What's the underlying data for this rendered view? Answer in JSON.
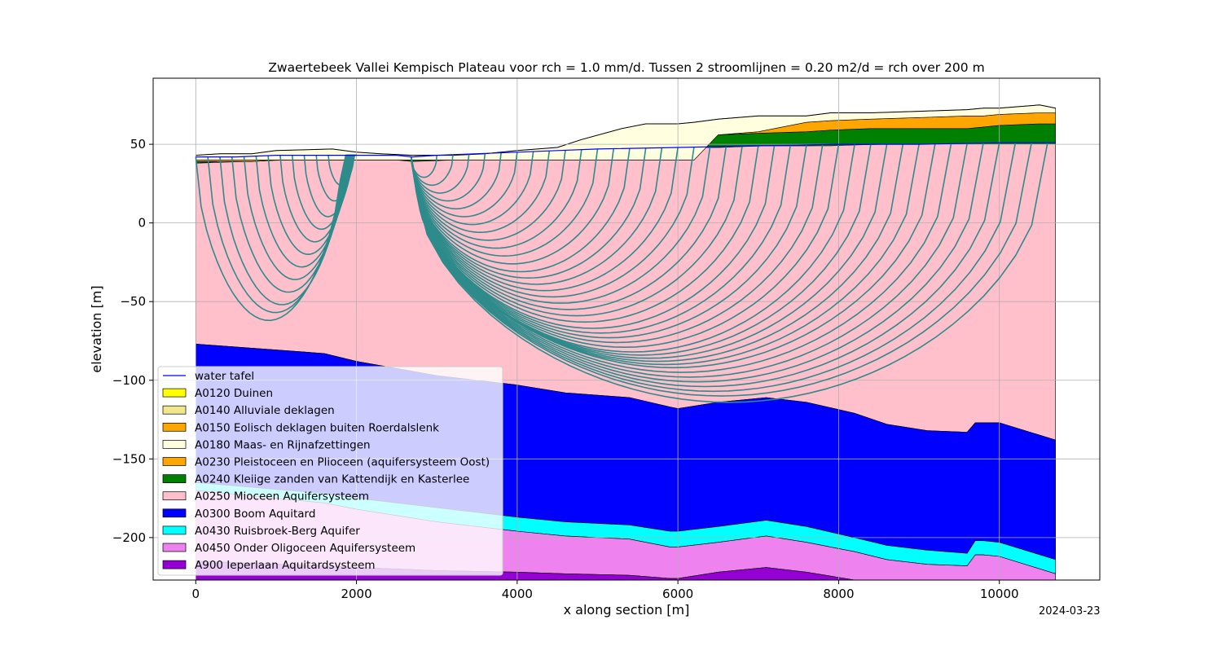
{
  "chart_data": {
    "type": "area",
    "title": "Zwaertebeek Vallei Kempisch Plateau voor rch = 1.0 mm/d. Tussen 2 stroomlijnen = 0.20 m2/d = rch over 200 m",
    "xlabel": "x along section [m]",
    "ylabel": "elevation [m]",
    "xlim": [
      -530,
      11250
    ],
    "ylim": [
      -227,
      92
    ],
    "xticks": [
      0,
      2000,
      4000,
      6000,
      8000,
      10000
    ],
    "xtick_labels": [
      "0",
      "2000",
      "4000",
      "6000",
      "8000",
      "10000"
    ],
    "yticks": [
      50,
      0,
      -50,
      -100,
      -150,
      -200
    ],
    "ytick_labels": [
      "50",
      "0",
      "−50",
      "−100",
      "−150",
      "−200"
    ],
    "grid": true,
    "legend_position": "lower-left",
    "legend": [
      {
        "label": "water tafel",
        "kind": "line",
        "color": "#0000ff"
      },
      {
        "label": "A0120 Duinen",
        "kind": "patch",
        "color": "#ffff00"
      },
      {
        "label": "A0140 Alluviale deklagen",
        "kind": "patch",
        "color": "#f0e68c"
      },
      {
        "label": "A0150 Eolisch deklagen buiten Roerdalslenk",
        "kind": "patch",
        "color": "#ffa500"
      },
      {
        "label": "A0180 Maas- en Rijnafzettingen",
        "kind": "patch",
        "color": "#ffffe0"
      },
      {
        "label": "A0230 Pleistoceen en Plioceen (aquifersysteem Oost)",
        "kind": "patch",
        "color": "#ffa500"
      },
      {
        "label": "A0240 Kleiige zanden van Kattendijk en Kasterlee",
        "kind": "patch",
        "color": "#008000"
      },
      {
        "label": "A0250 Mioceen Aquifersysteem",
        "kind": "patch",
        "color": "#ffc0cb"
      },
      {
        "label": "A0300 Boom Aquitard",
        "kind": "patch",
        "color": "#0000ff"
      },
      {
        "label": "A0430 Ruisbroek-Berg Aquifer",
        "kind": "patch",
        "color": "#00ffff"
      },
      {
        "label": "A0450 Onder Oligoceen Aquifersysteem",
        "kind": "patch",
        "color": "#ee82ee"
      },
      {
        "label": "A900 Ieperlaan Aquitardsysteem",
        "kind": "patch",
        "color": "#9400d3"
      }
    ],
    "layer_bottoms": {
      "x": [
        0,
        1600,
        2000,
        3000,
        4000,
        4600,
        5400,
        5900,
        6000,
        6500,
        7100,
        7600,
        8200,
        8600,
        9100,
        9600,
        9700,
        9800,
        10000,
        10700
      ],
      "A0250": [
        -77,
        -83,
        -88,
        -97,
        -103,
        -108,
        -111,
        -117,
        -118,
        -114,
        -111,
        -114,
        -121,
        -128,
        -132,
        -133,
        -127,
        -127,
        -127,
        -138
      ],
      "A0300": [
        -165,
        -172,
        -175,
        -181,
        -187,
        -190,
        -192,
        -196,
        -196,
        -193,
        -189,
        -193,
        -200,
        -205,
        -208,
        -210,
        -202,
        -202,
        -203,
        -214
      ],
      "A0430": [
        -170,
        -178,
        -182,
        -190,
        -196,
        -199,
        -201,
        -206,
        -206,
        -203,
        -199,
        -203,
        -209,
        -214,
        -217,
        -218,
        -211,
        -211,
        -212,
        -223
      ],
      "A0450": [
        -215,
        -218,
        -219,
        -221,
        -222,
        -223,
        -224,
        -226,
        -226,
        -222,
        -219,
        -222,
        -227,
        -227,
        -227,
        -227,
        -227,
        -227,
        -227,
        -227
      ]
    },
    "top_layers": {
      "x": [
        0,
        300,
        700,
        1000,
        1700,
        2000,
        2300,
        2700,
        3200,
        3600,
        4000,
        4500,
        4800,
        5300,
        5600,
        6000,
        6200,
        6500,
        7000,
        7600,
        7900,
        8400,
        9000,
        9600,
        9800,
        10000,
        10500,
        10700
      ],
      "ground_surface": [
        43,
        44,
        44,
        46,
        47,
        45,
        44,
        43,
        43,
        44,
        46,
        48,
        53,
        60,
        63,
        63,
        64,
        66,
        68,
        68,
        70,
        70,
        71,
        72,
        73,
        73,
        75,
        73
      ],
      "A0180_bottom": [
        40,
        40,
        40,
        40,
        40,
        40,
        40,
        40,
        40,
        40,
        40,
        40,
        40,
        40,
        40,
        40,
        40,
        56,
        58,
        64,
        65,
        66,
        67,
        68,
        68,
        69,
        70,
        70
      ],
      "A0230_bottom": [
        39,
        39,
        39,
        40,
        40,
        40,
        40,
        40,
        40,
        41,
        43,
        46,
        51,
        57,
        59,
        59,
        58,
        56,
        57,
        58,
        59,
        60,
        60,
        60,
        61,
        62,
        63,
        63
      ],
      "A0240_bottom": [
        38,
        39,
        39,
        40,
        41,
        41,
        41,
        39,
        40,
        42,
        44,
        46,
        47,
        48,
        48,
        48,
        48,
        48,
        49,
        49,
        49,
        50,
        50,
        50,
        50,
        50,
        50,
        50
      ]
    },
    "water_table": {
      "x": [
        0,
        500,
        1000,
        1500,
        2000,
        2500,
        2700,
        3000,
        3500,
        4000,
        4500,
        5000,
        6000,
        7000,
        8000,
        9000,
        10000,
        10700
      ],
      "y": [
        42,
        42,
        43,
        43,
        43,
        43,
        42,
        43,
        44,
        45,
        46,
        47,
        48,
        49,
        50,
        50,
        51,
        51
      ]
    },
    "streamlines": {
      "left_valley_x_starts": [
        0,
        150,
        300,
        450,
        600,
        750,
        900,
        1050,
        1200,
        1350,
        1500,
        1650
      ],
      "left_valley_depths": [
        -62,
        -57,
        -52,
        -44,
        -36,
        -28,
        -20,
        -12,
        -4,
        4,
        14,
        24
      ],
      "right_valley_x_starts": [
        3000,
        3200,
        3400,
        3600,
        3800,
        4000,
        4200,
        4400,
        4600,
        4800,
        5000,
        5200,
        5400,
        5600,
        5800,
        6000,
        6200,
        6400,
        6600,
        6800,
        7000,
        7200,
        7400,
        7600,
        7800,
        8000,
        8200,
        8400,
        8600,
        8800,
        9000,
        9200,
        9400,
        9600,
        9800,
        10000,
        10200,
        10400,
        10600
      ],
      "right_valley_min_depths": [
        29,
        24,
        19,
        14,
        9,
        4,
        -1,
        -6,
        -11,
        -16,
        -21,
        -26,
        -31,
        -35,
        -39,
        -43,
        -47,
        -51,
        -55,
        -59,
        -63,
        -67,
        -70,
        -73,
        -76,
        -79,
        -82,
        -84,
        -86,
        -88,
        -90,
        -92,
        -95,
        -98,
        -101,
        -104,
        -107,
        -110,
        -114
      ]
    },
    "footer": "2024-03-23"
  }
}
